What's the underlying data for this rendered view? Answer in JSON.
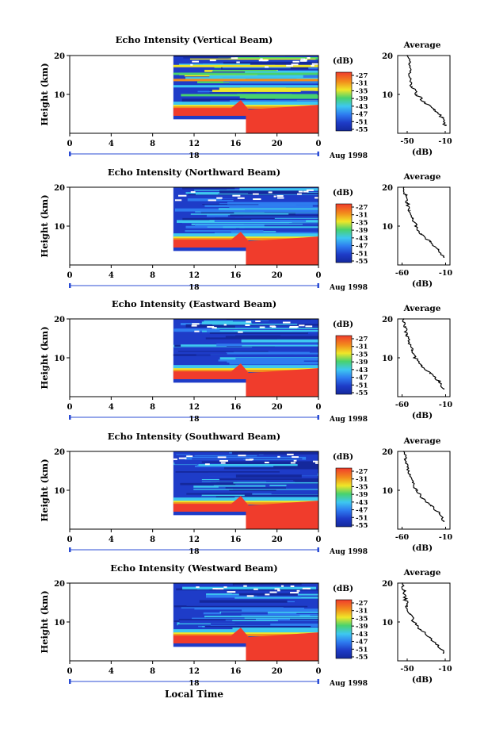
{
  "figure": {
    "xlabel_bottom": "Local Time",
    "date_label": "Aug 1998",
    "day_label": "18",
    "colorbar_unit": "(dB)",
    "colorbar_ticks": [
      "-27",
      "-31",
      "-35",
      "-39",
      "-43",
      "-47",
      "-51",
      "-55"
    ],
    "colors": {
      "red": "#f03c2c",
      "orange": "#f28c1c",
      "yellow": "#f0e628",
      "green": "#48d26e",
      "cyan": "#3ec8f0",
      "blue": "#2e7cf0",
      "darkblue": "#1e3cc8",
      "navy": "#14289c",
      "marker": "#2b4cd4"
    }
  },
  "chart_data": [
    {
      "type": "heatmap",
      "title": "Echo Intensity (Vertical Beam)",
      "ylabel": "Height (km)",
      "xticks": [
        "0",
        "4",
        "8",
        "12",
        "16",
        "20",
        "0"
      ],
      "yticks": [
        "10",
        "20"
      ],
      "xlim": [
        0,
        24
      ],
      "ylim": [
        0,
        20
      ],
      "data_start_hour": 10,
      "colorbar": {
        "unit": "(dB)",
        "ticks": [
          "-27",
          "-31",
          "-35",
          "-39",
          "-43",
          "-47",
          "-51",
          "-55"
        ]
      },
      "profile": {
        "title": "Average",
        "xlabel": "(dB)",
        "xticks": [
          "-50",
          "-10"
        ],
        "yticks": [
          "10",
          "20"
        ],
        "xlim": [
          -60,
          -5
        ],
        "ylim": [
          0,
          20
        ],
        "height_km": [
          2,
          4,
          6,
          8,
          10,
          12,
          14,
          16,
          18,
          20
        ],
        "db": [
          -10,
          -13,
          -22,
          -32,
          -40,
          -45,
          -46,
          -47,
          -48,
          -50
        ]
      }
    },
    {
      "type": "heatmap",
      "title": "Echo Intensity (Northward Beam)",
      "ylabel": "Height (km)",
      "xticks": [
        "0",
        "4",
        "8",
        "12",
        "16",
        "20",
        "0"
      ],
      "yticks": [
        "10",
        "20"
      ],
      "xlim": [
        0,
        24
      ],
      "ylim": [
        0,
        20
      ],
      "data_start_hour": 10,
      "colorbar": {
        "unit": "(dB)",
        "ticks": [
          "-27",
          "-31",
          "-35",
          "-39",
          "-43",
          "-47",
          "-51",
          "-55"
        ]
      },
      "profile": {
        "title": "Average",
        "xlabel": "(dB)",
        "xticks": [
          "-60",
          "-10"
        ],
        "yticks": [
          "10",
          "20"
        ],
        "xlim": [
          -65,
          -5
        ],
        "ylim": [
          0,
          20
        ],
        "height_km": [
          2,
          4,
          6,
          8,
          10,
          12,
          14,
          16,
          18,
          20
        ],
        "db": [
          -12,
          -18,
          -28,
          -38,
          -44,
          -48,
          -51,
          -54,
          -56,
          -58
        ]
      }
    },
    {
      "type": "heatmap",
      "title": "Echo Intensity (Eastward Beam)",
      "ylabel": "Height (km)",
      "xticks": [
        "0",
        "4",
        "8",
        "12",
        "16",
        "20",
        "0"
      ],
      "yticks": [
        "10",
        "20"
      ],
      "xlim": [
        0,
        24
      ],
      "ylim": [
        0,
        20
      ],
      "data_start_hour": 10,
      "colorbar": {
        "unit": "(dB)",
        "ticks": [
          "-27",
          "-31",
          "-35",
          "-39",
          "-43",
          "-47",
          "-51",
          "-55"
        ]
      },
      "profile": {
        "title": "Average",
        "xlabel": "(dB)",
        "xticks": [
          "-60",
          "-10"
        ],
        "yticks": [
          "10",
          "20"
        ],
        "xlim": [
          -65,
          -5
        ],
        "ylim": [
          0,
          20
        ],
        "height_km": [
          2,
          4,
          6,
          8,
          10,
          12,
          14,
          16,
          18,
          20
        ],
        "db": [
          -12,
          -18,
          -28,
          -38,
          -45,
          -49,
          -52,
          -55,
          -56,
          -58
        ]
      }
    },
    {
      "type": "heatmap",
      "title": "Echo Intensity (Southward Beam)",
      "ylabel": "Height (km)",
      "xticks": [
        "0",
        "4",
        "8",
        "12",
        "16",
        "20",
        "0"
      ],
      "yticks": [
        "10",
        "20"
      ],
      "xlim": [
        0,
        24
      ],
      "ylim": [
        0,
        20
      ],
      "data_start_hour": 10,
      "colorbar": {
        "unit": "(dB)",
        "ticks": [
          "-27",
          "-31",
          "-35",
          "-39",
          "-43",
          "-47",
          "-51",
          "-55"
        ]
      },
      "profile": {
        "title": "Average",
        "xlabel": "(dB)",
        "xticks": [
          "-60",
          "-10"
        ],
        "yticks": [
          "10",
          "20"
        ],
        "xlim": [
          -65,
          -5
        ],
        "ylim": [
          0,
          20
        ],
        "height_km": [
          2,
          4,
          6,
          8,
          10,
          12,
          14,
          16,
          18,
          20
        ],
        "db": [
          -12,
          -17,
          -27,
          -37,
          -44,
          -48,
          -51,
          -54,
          -56,
          -58
        ]
      }
    },
    {
      "type": "heatmap",
      "title": "Echo Intensity (Westward Beam)",
      "ylabel": "Height (km)",
      "xticks": [
        "0",
        "4",
        "8",
        "12",
        "16",
        "20",
        "0"
      ],
      "yticks": [
        "10",
        "20"
      ],
      "xlim": [
        0,
        24
      ],
      "ylim": [
        0,
        20
      ],
      "data_start_hour": 10,
      "colorbar": {
        "unit": "(dB)",
        "ticks": [
          "-27",
          "-31",
          "-35",
          "-39",
          "-43",
          "-47",
          "-51",
          "-55"
        ]
      },
      "profile": {
        "title": "Average",
        "xlabel": "(dB)",
        "xticks": [
          "-50",
          "-10"
        ],
        "yticks": [
          "10",
          "20"
        ],
        "xlim": [
          -60,
          -5
        ],
        "ylim": [
          0,
          20
        ],
        "height_km": [
          2,
          4,
          6,
          8,
          10,
          12,
          14,
          16,
          18,
          20
        ],
        "db": [
          -12,
          -17,
          -26,
          -36,
          -43,
          -47,
          -50,
          -52,
          -53,
          -55
        ]
      }
    }
  ]
}
